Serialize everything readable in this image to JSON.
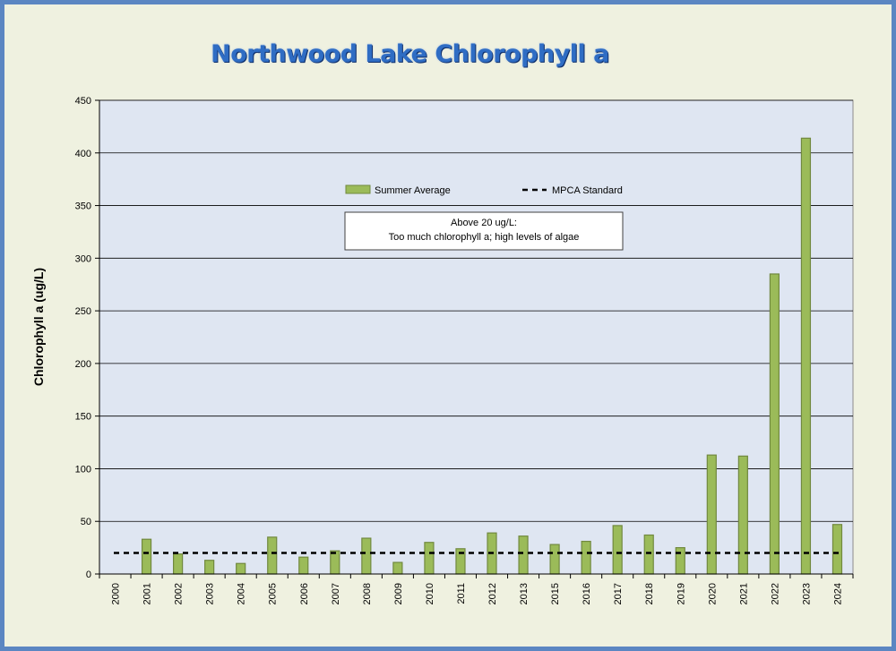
{
  "chart_data": {
    "type": "bar",
    "title": "Northwood Lake Chlorophyll a",
    "xlabel": "",
    "ylabel": "Chlorophyll a (ug/L)",
    "ylim": [
      0,
      450
    ],
    "yticks": [
      0,
      50,
      100,
      150,
      200,
      250,
      300,
      350,
      400,
      450
    ],
    "grid": true,
    "legend_position": "top-center",
    "categories": [
      "2000",
      "2001",
      "2002",
      "2003",
      "2004",
      "2005",
      "2006",
      "2007",
      "2008",
      "2009",
      "2010",
      "2011",
      "2012",
      "2013",
      "2015",
      "2016",
      "2017",
      "2018",
      "2019",
      "2020",
      "2021",
      "2022",
      "2023",
      "2024"
    ],
    "series": [
      {
        "name": "Summer Average",
        "type": "bar",
        "color": "#9bbb59",
        "border_color": "#71893f",
        "values": [
          null,
          33,
          19,
          13,
          10,
          35,
          16,
          22,
          34,
          11,
          30,
          24,
          39,
          36,
          28,
          31,
          46,
          37,
          25,
          113,
          112,
          285,
          414,
          47
        ]
      },
      {
        "name": "MPCA Standard",
        "type": "line",
        "style": "dashed",
        "color": "#000000",
        "value": 20
      }
    ],
    "annotation": {
      "line1": "Above 20 ug/L:",
      "line2": "Too much chlorophyll a; high levels of algae"
    }
  },
  "colors": {
    "frame": "#5b86c2",
    "plot_bg": "#dfe6f2",
    "title": "#2f6dc4"
  }
}
